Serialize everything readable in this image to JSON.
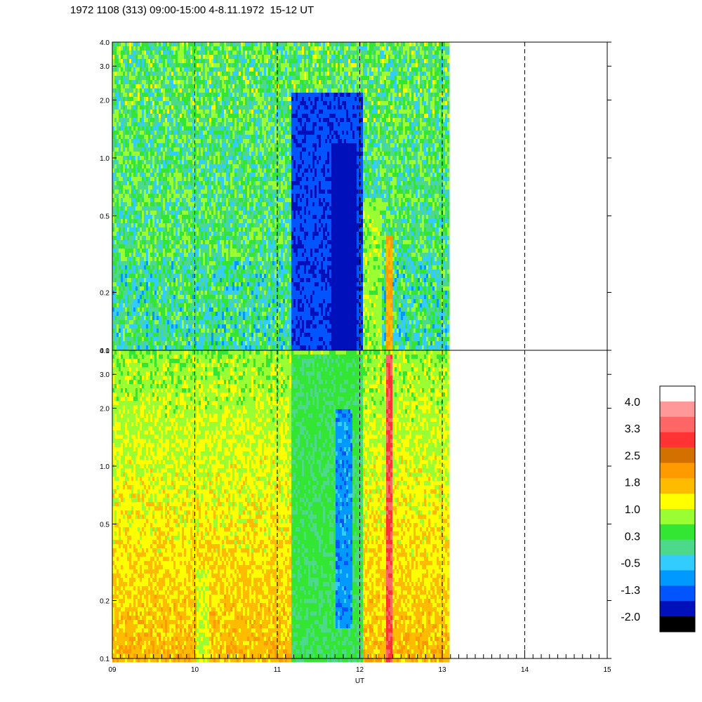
{
  "title": "1972 1108 (313) 09:00-15:00 4-8.11.1972  15-12 UT",
  "chart_data": [
    {
      "type": "heatmap",
      "panel": "top",
      "x_range": [
        9,
        15
      ],
      "data_end_x": 13.07,
      "y_scale": "log",
      "y_range": [
        0.1,
        4.0
      ],
      "y_ticks": [
        "0.1",
        "0.2",
        "0.5",
        "1.0",
        "2.0",
        "3.0",
        "4.0"
      ],
      "dashed_vlines": [
        10,
        11,
        12,
        13,
        14
      ],
      "features": [
        {
          "x_start": 11.15,
          "x_end": 12.02,
          "y_min": 0.1,
          "y_max": 2.2,
          "level": -1.3,
          "description_color": "blue"
        },
        {
          "x_start": 11.65,
          "x_end": 11.95,
          "y_min": 0.1,
          "y_max": 1.2,
          "level": -2.0
        },
        {
          "x_start": 12.3,
          "x_end": 12.38,
          "y_min": 0.1,
          "y_max": 0.4,
          "level": 1.8
        },
        {
          "x_start": 12.03,
          "x_end": 12.25,
          "y_min": 0.1,
          "y_max": 0.6,
          "level": 0.8
        }
      ],
      "base_level_range": [
        -0.5,
        1.0
      ]
    },
    {
      "type": "heatmap",
      "panel": "bottom",
      "x_range": [
        9,
        15
      ],
      "data_end_x": 13.07,
      "y_scale": "log",
      "y_range": [
        0.1,
        4.0
      ],
      "y_ticks": [
        "0.1",
        "0.2",
        "0.5",
        "1.0",
        "2.0",
        "3.0",
        "4.0"
      ],
      "dashed_vlines": [
        10,
        11,
        12,
        13,
        14
      ],
      "features": [
        {
          "x_start": 11.15,
          "x_end": 12.02,
          "y_min": 0.1,
          "y_max": 4.0,
          "level": 0.3
        },
        {
          "x_start": 11.7,
          "x_end": 11.9,
          "y_min": 0.15,
          "y_max": 2.0,
          "level": -0.8
        },
        {
          "x_start": 12.3,
          "x_end": 12.38,
          "y_min": 0.1,
          "y_max": 4.0,
          "level": 3.0
        },
        {
          "x_start": 10.0,
          "x_end": 10.15,
          "y_min": 0.1,
          "y_max": 0.3,
          "level": 1.0
        }
      ],
      "base_level_range": [
        1.3,
        2.0
      ]
    }
  ],
  "x_axis": {
    "label": "UT",
    "tick_labels": [
      "09",
      "10",
      "11",
      "12",
      "13",
      "14",
      "15"
    ]
  },
  "colorbar": {
    "labels": [
      "4.0",
      "3.3",
      "2.5",
      "1.8",
      "1.0",
      "0.3",
      "-0.5",
      "-1.3",
      "-2.0"
    ],
    "colors_top_to_bottom": [
      "#ffffff",
      "#ff9999",
      "#ff6666",
      "#ff3333",
      "#d27000",
      "#ff9900",
      "#ffbb00",
      "#ffff00",
      "#99ff33",
      "#33e633",
      "#4dd98a",
      "#33ccff",
      "#0099ff",
      "#0055ff",
      "#0011bb",
      "#000000"
    ]
  }
}
